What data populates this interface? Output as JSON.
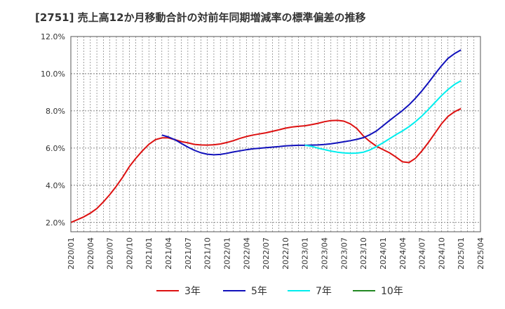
{
  "chart_data": {
    "type": "line",
    "title": "[2751]  売上高12か月移動合計の対前年同期増減率の標準偏差の推移",
    "xlabel": "",
    "ylabel": "",
    "x_tick_labels": [
      "2020/01",
      "2020/04",
      "2020/07",
      "2020/10",
      "2021/01",
      "2021/04",
      "2021/07",
      "2021/10",
      "2022/01",
      "2022/04",
      "2022/07",
      "2022/10",
      "2023/01",
      "2023/04",
      "2023/07",
      "2023/10",
      "2024/01",
      "2024/04",
      "2024/07",
      "2024/10",
      "2025/01",
      "2025/04"
    ],
    "y_tick_labels": [
      "2.0%",
      "4.0%",
      "6.0%",
      "8.0%",
      "10.0%",
      "12.0%"
    ],
    "y_ticks": [
      2,
      4,
      6,
      8,
      10,
      12
    ],
    "ylim": [
      1.5,
      12.0
    ],
    "grid": true,
    "legend_position": "bottom",
    "series": [
      {
        "name": "3年",
        "color": "#dd1111",
        "points": [
          [
            "2020/01",
            2.0
          ],
          [
            "2020/02",
            2.15
          ],
          [
            "2020/03",
            2.3
          ],
          [
            "2020/04",
            2.5
          ],
          [
            "2020/05",
            2.75
          ],
          [
            "2020/06",
            3.1
          ],
          [
            "2020/07",
            3.5
          ],
          [
            "2020/08",
            3.95
          ],
          [
            "2020/09",
            4.45
          ],
          [
            "2020/10",
            5.0
          ],
          [
            "2020/11",
            5.45
          ],
          [
            "2020/12",
            5.85
          ],
          [
            "2021/01",
            6.2
          ],
          [
            "2021/02",
            6.45
          ],
          [
            "2021/03",
            6.55
          ],
          [
            "2021/04",
            6.55
          ],
          [
            "2021/05",
            6.45
          ],
          [
            "2021/06",
            6.35
          ],
          [
            "2021/07",
            6.28
          ],
          [
            "2021/08",
            6.2
          ],
          [
            "2021/09",
            6.17
          ],
          [
            "2021/10",
            6.16
          ],
          [
            "2021/11",
            6.18
          ],
          [
            "2021/12",
            6.22
          ],
          [
            "2022/01",
            6.3
          ],
          [
            "2022/02",
            6.4
          ],
          [
            "2022/03",
            6.52
          ],
          [
            "2022/04",
            6.62
          ],
          [
            "2022/05",
            6.7
          ],
          [
            "2022/06",
            6.76
          ],
          [
            "2022/07",
            6.82
          ],
          [
            "2022/08",
            6.9
          ],
          [
            "2022/09",
            6.98
          ],
          [
            "2022/10",
            7.07
          ],
          [
            "2022/11",
            7.13
          ],
          [
            "2022/12",
            7.17
          ],
          [
            "2023/01",
            7.2
          ],
          [
            "2023/02",
            7.26
          ],
          [
            "2023/03",
            7.33
          ],
          [
            "2023/04",
            7.42
          ],
          [
            "2023/05",
            7.48
          ],
          [
            "2023/06",
            7.49
          ],
          [
            "2023/07",
            7.45
          ],
          [
            "2023/08",
            7.3
          ],
          [
            "2023/09",
            7.05
          ],
          [
            "2023/10",
            6.65
          ],
          [
            "2023/11",
            6.35
          ],
          [
            "2023/12",
            6.1
          ],
          [
            "2024/01",
            5.92
          ],
          [
            "2024/02",
            5.75
          ],
          [
            "2024/03",
            5.52
          ],
          [
            "2024/04",
            5.26
          ],
          [
            "2024/05",
            5.22
          ],
          [
            "2024/06",
            5.45
          ],
          [
            "2024/07",
            5.85
          ],
          [
            "2024/08",
            6.3
          ],
          [
            "2024/09",
            6.8
          ],
          [
            "2024/10",
            7.3
          ],
          [
            "2024/11",
            7.7
          ],
          [
            "2024/12",
            7.95
          ],
          [
            "2025/01",
            8.12
          ]
        ]
      },
      {
        "name": "5年",
        "color": "#1111bb",
        "points": [
          [
            "2021/03",
            6.7
          ],
          [
            "2021/04",
            6.6
          ],
          [
            "2021/05",
            6.45
          ],
          [
            "2021/06",
            6.25
          ],
          [
            "2021/07",
            6.05
          ],
          [
            "2021/08",
            5.88
          ],
          [
            "2021/09",
            5.75
          ],
          [
            "2021/10",
            5.67
          ],
          [
            "2021/11",
            5.64
          ],
          [
            "2021/12",
            5.66
          ],
          [
            "2022/01",
            5.72
          ],
          [
            "2022/02",
            5.79
          ],
          [
            "2022/03",
            5.85
          ],
          [
            "2022/04",
            5.91
          ],
          [
            "2022/05",
            5.96
          ],
          [
            "2022/06",
            5.99
          ],
          [
            "2022/07",
            6.02
          ],
          [
            "2022/08",
            6.05
          ],
          [
            "2022/09",
            6.08
          ],
          [
            "2022/10",
            6.12
          ],
          [
            "2022/11",
            6.14
          ],
          [
            "2022/12",
            6.15
          ],
          [
            "2023/01",
            6.15
          ],
          [
            "2023/02",
            6.16
          ],
          [
            "2023/03",
            6.17
          ],
          [
            "2023/04",
            6.19
          ],
          [
            "2023/05",
            6.23
          ],
          [
            "2023/06",
            6.28
          ],
          [
            "2023/07",
            6.34
          ],
          [
            "2023/08",
            6.4
          ],
          [
            "2023/09",
            6.47
          ],
          [
            "2023/10",
            6.56
          ],
          [
            "2023/11",
            6.72
          ],
          [
            "2023/12",
            6.92
          ],
          [
            "2024/01",
            7.2
          ],
          [
            "2024/02",
            7.48
          ],
          [
            "2024/03",
            7.75
          ],
          [
            "2024/04",
            8.02
          ],
          [
            "2024/05",
            8.32
          ],
          [
            "2024/06",
            8.68
          ],
          [
            "2024/07",
            9.08
          ],
          [
            "2024/08",
            9.52
          ],
          [
            "2024/09",
            9.98
          ],
          [
            "2024/10",
            10.42
          ],
          [
            "2024/11",
            10.82
          ],
          [
            "2024/12",
            11.08
          ],
          [
            "2025/01",
            11.28
          ]
        ]
      },
      {
        "name": "7年",
        "color": "#00eeee",
        "points": [
          [
            "2023/01",
            6.15
          ],
          [
            "2023/02",
            6.1
          ],
          [
            "2023/03",
            6.0
          ],
          [
            "2023/04",
            5.92
          ],
          [
            "2023/05",
            5.84
          ],
          [
            "2023/06",
            5.78
          ],
          [
            "2023/07",
            5.74
          ],
          [
            "2023/08",
            5.72
          ],
          [
            "2023/09",
            5.73
          ],
          [
            "2023/10",
            5.78
          ],
          [
            "2023/11",
            5.9
          ],
          [
            "2023/12",
            6.08
          ],
          [
            "2024/01",
            6.28
          ],
          [
            "2024/02",
            6.5
          ],
          [
            "2024/03",
            6.72
          ],
          [
            "2024/04",
            6.92
          ],
          [
            "2024/05",
            7.15
          ],
          [
            "2024/06",
            7.42
          ],
          [
            "2024/07",
            7.73
          ],
          [
            "2024/08",
            8.08
          ],
          [
            "2024/09",
            8.45
          ],
          [
            "2024/10",
            8.82
          ],
          [
            "2024/11",
            9.15
          ],
          [
            "2024/12",
            9.42
          ],
          [
            "2025/01",
            9.62
          ]
        ]
      },
      {
        "name": "10年",
        "color": "#228822",
        "points": []
      }
    ]
  }
}
